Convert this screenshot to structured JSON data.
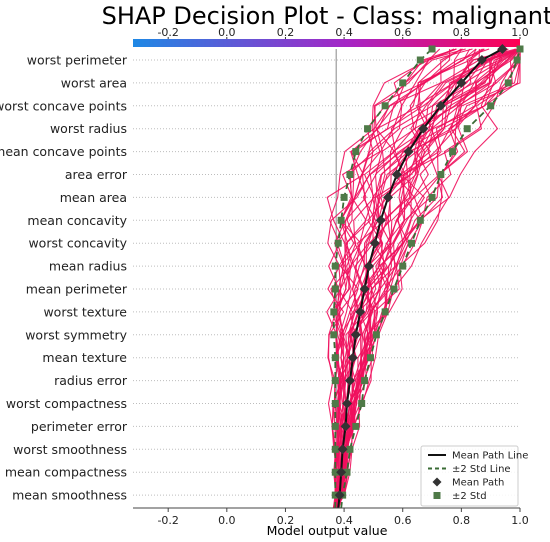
{
  "chart_data": {
    "type": "line",
    "title": "SHAP Decision Plot - Class: malignant",
    "xlabel": "Model output value",
    "ylabel": "",
    "xlim": [
      -0.32,
      1.0
    ],
    "x_ticks": [
      "-0.2",
      "0.0",
      "0.2",
      "0.4",
      "0.6",
      "0.8",
      "1.0"
    ],
    "x_tick_values": [
      -0.2,
      0.0,
      0.2,
      0.4,
      0.6,
      0.8,
      1.0
    ],
    "base_value": 0.373,
    "features": [
      "worst perimeter",
      "worst area",
      "worst concave points",
      "worst radius",
      "mean concave points",
      "area error",
      "mean area",
      "mean concavity",
      "worst concavity",
      "mean radius",
      "mean perimeter",
      "worst texture",
      "worst symmetry",
      "mean texture",
      "radius error",
      "worst compactness",
      "perimeter error",
      "worst smoothness",
      "mean compactness",
      "mean smoothness"
    ],
    "colorbar": {
      "colors": [
        "#1e88e5",
        "#ff0052"
      ],
      "range": [
        -0.32,
        1.0
      ]
    },
    "series": [
      {
        "name": "Mean Path Line",
        "style": "solid",
        "color": "#000000",
        "values": [
          0.38,
          0.385,
          0.39,
          0.395,
          0.405,
          0.41,
          0.42,
          0.43,
          0.44,
          0.455,
          0.47,
          0.485,
          0.505,
          0.525,
          0.55,
          0.58,
          0.62,
          0.67,
          0.73,
          0.8,
          0.87,
          0.94
        ]
      },
      {
        "name": "±2 Std Line",
        "style": "dashed",
        "color": "#3a6b35",
        "lower": [
          0.37,
          0.37,
          0.37,
          0.37,
          0.37,
          0.37,
          0.37,
          0.37,
          0.365,
          0.365,
          0.37,
          0.37,
          0.38,
          0.39,
          0.4,
          0.42,
          0.44,
          0.48,
          0.54,
          0.6,
          0.66,
          0.7
        ],
        "upper": [
          0.39,
          0.395,
          0.41,
          0.42,
          0.44,
          0.46,
          0.47,
          0.49,
          0.51,
          0.54,
          0.57,
          0.6,
          0.63,
          0.66,
          0.7,
          0.73,
          0.77,
          0.82,
          0.9,
          0.96,
          0.99,
          1.0
        ]
      }
    ],
    "legend": {
      "placement": "bottom-right",
      "entries": [
        "Mean Path Line",
        "±2 Std Line",
        "Mean Path",
        "±2 Std"
      ]
    }
  }
}
